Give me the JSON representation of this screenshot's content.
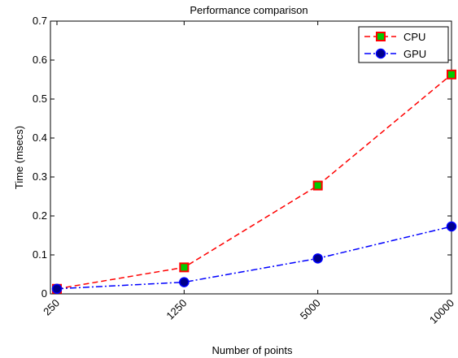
{
  "chart_data": {
    "type": "line",
    "title": "Performance comparison",
    "xlabel": "Number of points",
    "ylabel": "Time (msecs)",
    "categories": [
      "250",
      "1250",
      "5000",
      "10000"
    ],
    "ylim": [
      0,
      0.7
    ],
    "yticks": [
      "0",
      "0.1",
      "0.2",
      "0.3",
      "0.4",
      "0.5",
      "0.6",
      "0.7"
    ],
    "grid": false,
    "legend_position": "top-right",
    "series": [
      {
        "name": "CPU",
        "values": [
          0.013,
          0.068,
          0.278,
          0.563
        ],
        "line_color": "#ff0000",
        "line_style": "dashed",
        "marker": "square",
        "marker_fill": "#00cc00",
        "marker_edge": "#ff0000"
      },
      {
        "name": "GPU",
        "values": [
          0.013,
          0.03,
          0.091,
          0.173
        ],
        "line_color": "#0000ff",
        "line_style": "dash-dot",
        "marker": "circle",
        "marker_fill": "#00008b",
        "marker_edge": "#0000ff"
      }
    ]
  }
}
